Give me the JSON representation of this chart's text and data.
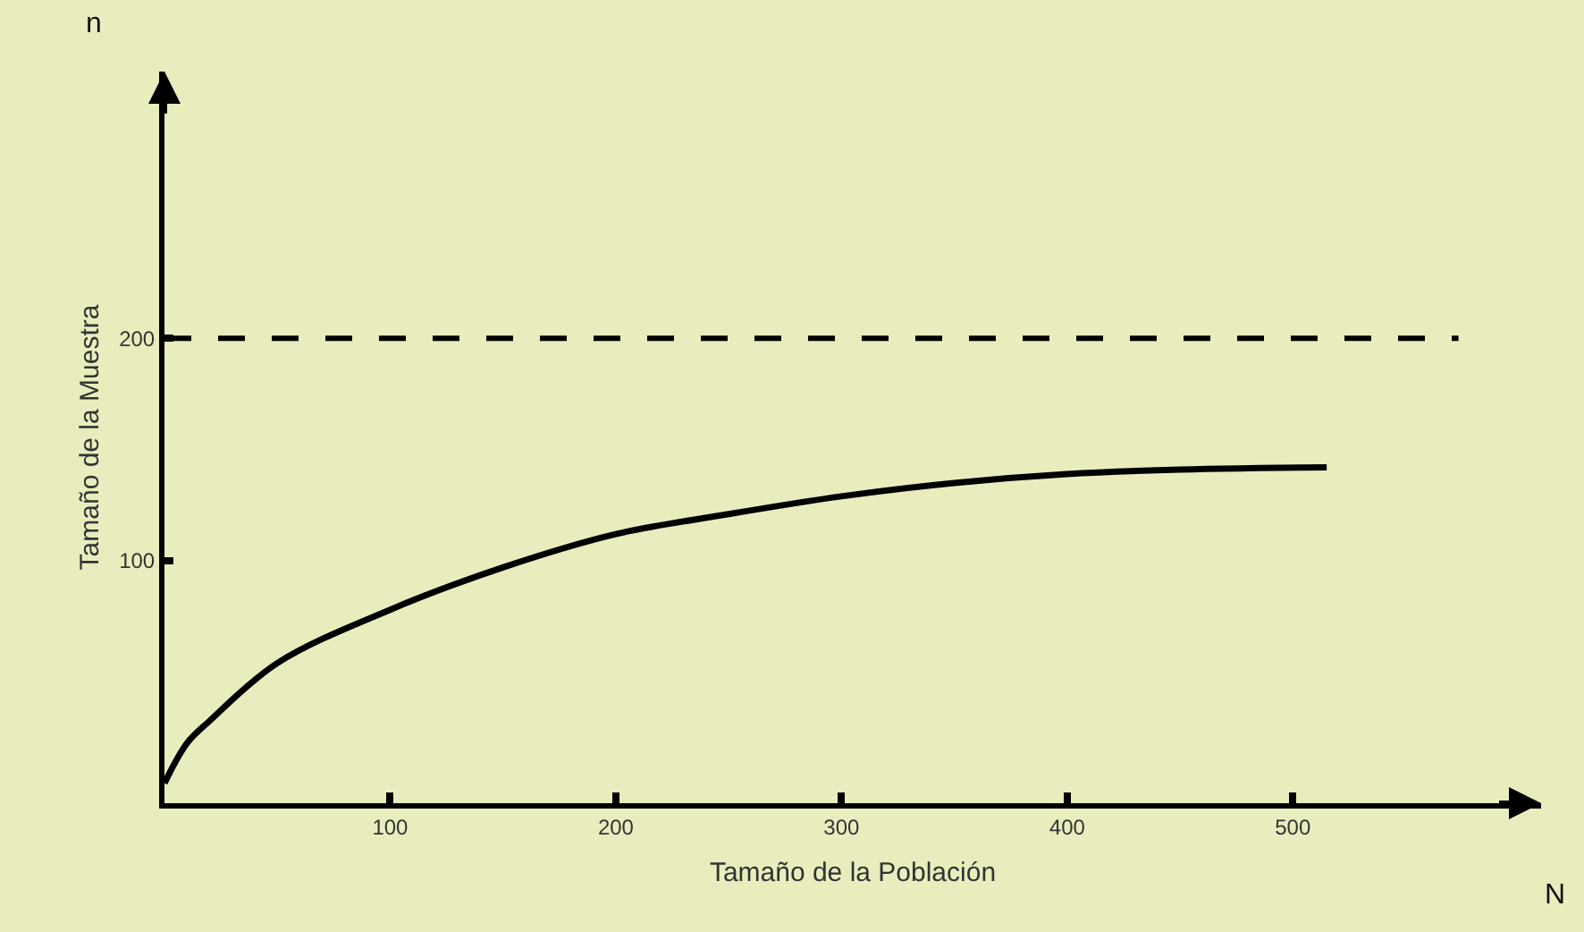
{
  "chart_data": {
    "type": "line",
    "xlabel": "Tamaño de la Población",
    "ylabel": "Tamaño de la Muestra",
    "annotations": [
      "n",
      "N"
    ],
    "series": [
      {
        "color": "#000000",
        "x": [
          0,
          10,
          20,
          50,
          100,
          150,
          200,
          250,
          300,
          350,
          400,
          450,
          515
        ],
        "values": [
          0,
          18,
          28,
          54,
          78,
          97,
          112,
          121,
          129,
          135,
          139,
          141,
          142
        ]
      }
    ],
    "xlim": [
      0,
      610
    ],
    "ylim": [
      -9,
      320
    ],
    "xticks": [
      100,
      200,
      300,
      400,
      500
    ],
    "yticks": [
      100,
      200
    ],
    "ref_lines": [
      {
        "axis": "y",
        "value": 200,
        "color": "#000000",
        "line_style": "dashed"
      }
    ],
    "grid": false,
    "marker": "none",
    "line_style": "solid"
  }
}
